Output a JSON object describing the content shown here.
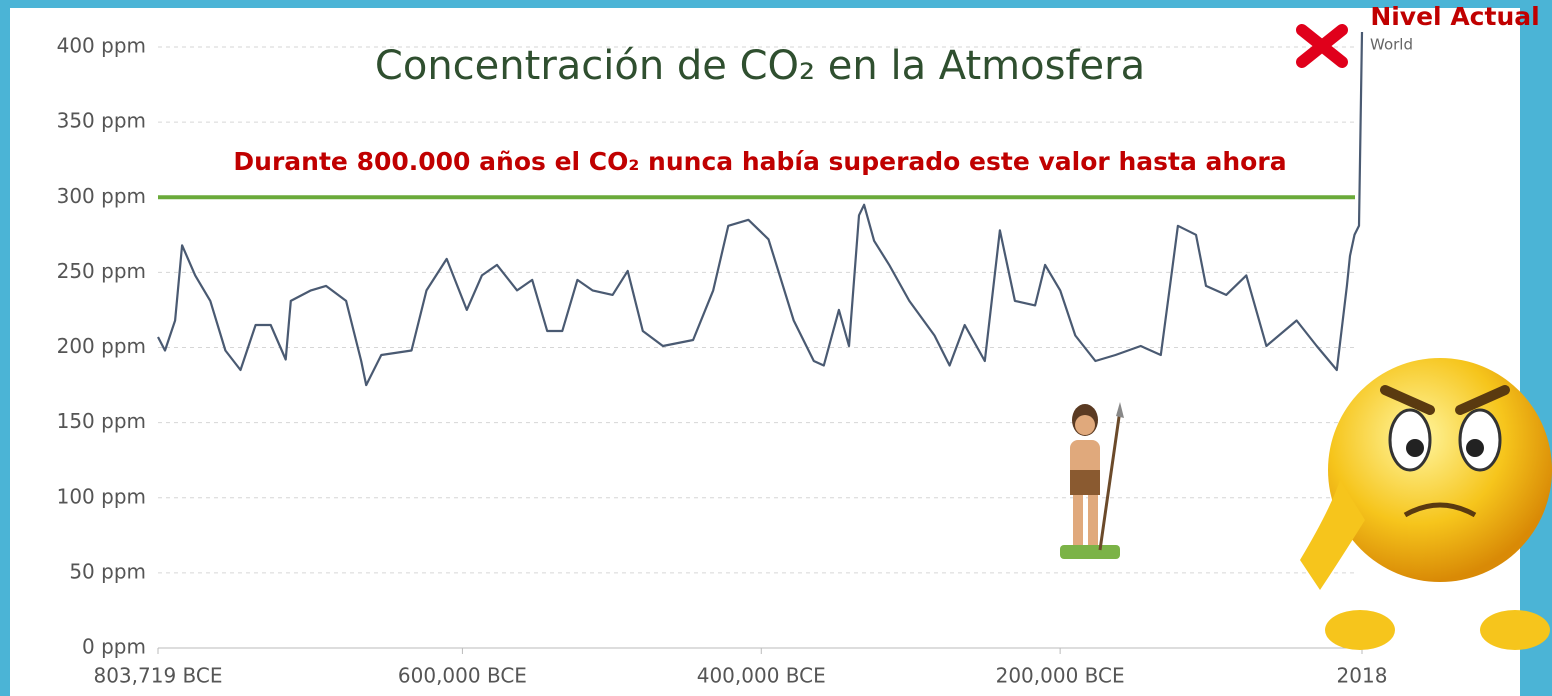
{
  "chart_data": {
    "type": "line",
    "title": "Concentración de CO₂ en la Atmosfera",
    "reference_line": {
      "value": 300,
      "label": "Durante 800.000 años el CO₂ nunca había superado este valor hasta ahora",
      "color": "#6aaa3a"
    },
    "current_label": "Nivel Actual",
    "x": [
      -803719,
      -799007,
      -792276,
      -787564,
      -778814,
      -768717,
      -758621,
      -748524,
      -738428,
      -728331,
      -718235,
      -714869,
      -701407,
      -691311,
      -677849,
      -667752,
      -664387,
      -654290,
      -634097,
      -624001,
      -610539,
      -597077,
      -586980,
      -576884,
      -563422,
      -553325,
      -543229,
      -533132,
      -523036,
      -512939,
      -499477,
      -489381,
      -479285,
      -465823,
      -445630,
      -432168,
      -422071,
      -408609,
      -395147,
      -378320,
      -364858,
      -358127,
      -348031,
      -341300,
      -334569,
      -331204,
      -324473,
      -314376,
      -300914,
      -284087,
      -273991,
      -263894,
      -250432,
      -240336,
      -230239,
      -216777,
      -210046,
      -199950,
      -189853,
      -176391,
      -162929,
      -146102,
      -132640,
      -125909,
      -121197,
      -109082,
      -102351,
      -88889,
      -75427,
      -61965,
      -41772,
      -28310,
      -14848,
      -8117,
      -6000,
      -3000,
      0,
      2018
    ],
    "series": [
      {
        "name": "World",
        "color": "#4a5a72",
        "values": [
          207,
          198,
          218,
          268,
          248,
          231,
          198,
          185,
          215,
          215,
          192,
          231,
          238,
          241,
          231,
          191,
          175,
          195,
          198,
          238,
          259,
          225,
          248,
          255,
          238,
          245,
          211,
          211,
          245,
          238,
          235,
          251,
          211,
          201,
          205,
          238,
          281,
          285,
          272,
          218,
          191,
          188,
          225,
          201,
          288,
          295,
          271,
          255,
          231,
          208,
          188,
          215,
          191,
          278,
          231,
          228,
          255,
          238,
          208,
          191,
          195,
          201,
          195,
          245,
          281,
          275,
          241,
          235,
          248,
          201,
          218,
          201,
          185,
          241,
          261,
          275,
          281,
          410
        ]
      }
    ],
    "xlim": [
      -803719,
      2018
    ],
    "xticks": [
      {
        "value": -803719,
        "label": "803,719 BCE"
      },
      {
        "value": -600000,
        "label": "600,000 BCE"
      },
      {
        "value": -400000,
        "label": "400,000 BCE"
      },
      {
        "value": -200000,
        "label": "200,000 BCE"
      },
      2018
    ],
    "ylim": [
      0,
      400
    ],
    "yticks": [
      {
        "value": 0,
        "label": "0 ppm"
      },
      {
        "value": 50,
        "label": "50 ppm"
      },
      {
        "value": 100,
        "label": "100 ppm"
      },
      {
        "value": 150,
        "label": "150 ppm"
      },
      {
        "value": 200,
        "label": "200 ppm"
      },
      {
        "value": 250,
        "label": "250 ppm"
      },
      {
        "value": 300,
        "label": "300 ppm"
      },
      {
        "value": 350,
        "label": "350 ppm"
      },
      {
        "value": 400,
        "label": "400 ppm"
      }
    ],
    "grid": true
  }
}
